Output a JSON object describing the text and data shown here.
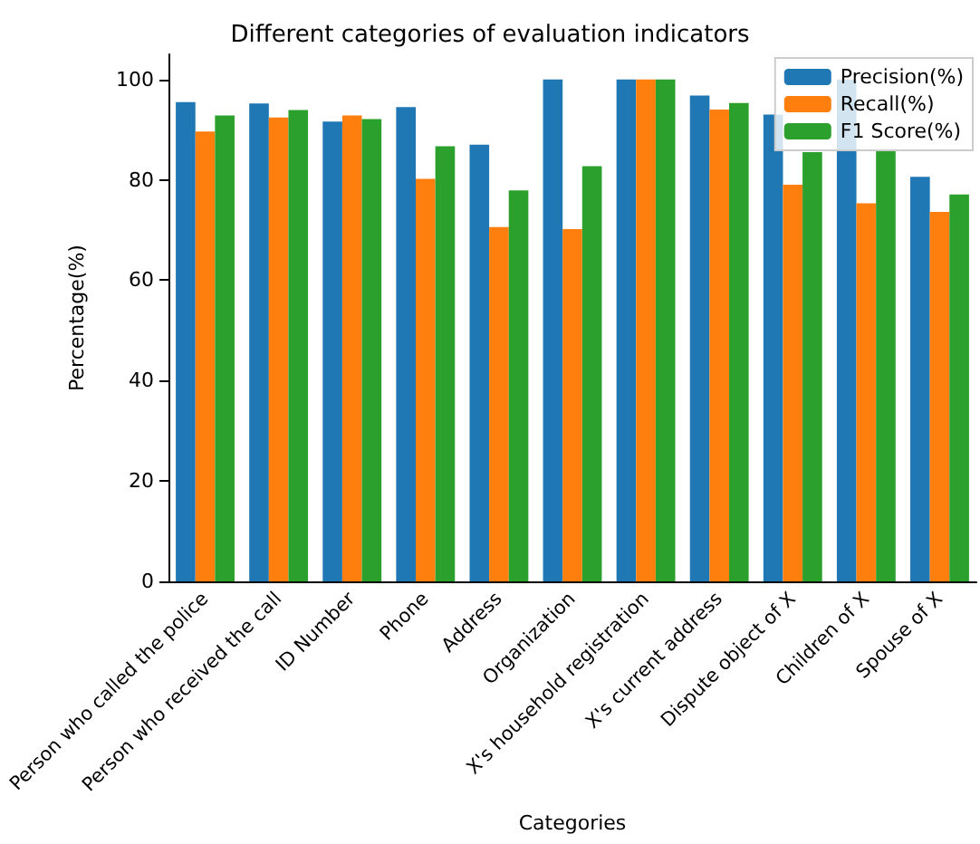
{
  "chart_data": {
    "type": "bar",
    "title": "Different categories of evaluation indicators",
    "xlabel": "Categories",
    "ylabel": "Percentage(%)",
    "categories": [
      "Person who called the police",
      "Person who received the call",
      "ID Number",
      "Phone",
      "Address",
      "Organization",
      "X's household registration",
      "X's current address",
      "Dispute object of X",
      "Children of X",
      "Spouse of X"
    ],
    "series": [
      {
        "name": "Precision(%)",
        "color": "#1f77b4",
        "values": [
          95.5,
          95.2,
          91.6,
          94.5,
          87.0,
          100,
          100,
          96.8,
          93.0,
          100,
          80.6
        ]
      },
      {
        "name": "Recall(%)",
        "color": "#ff7f0e",
        "values": [
          89.6,
          92.4,
          92.8,
          80.2,
          70.6,
          70.2,
          100,
          94.0,
          79.0,
          75.3,
          73.6
        ]
      },
      {
        "name": "F1 Score(%)",
        "color": "#2ca02c",
        "values": [
          92.8,
          93.9,
          92.1,
          86.7,
          77.9,
          82.7,
          100,
          95.3,
          85.5,
          85.8,
          77.1
        ]
      }
    ],
    "ylim": [
      0,
      105
    ],
    "yticks": [
      0,
      20,
      40,
      60,
      80,
      100
    ],
    "grid": false,
    "legend": "top right"
  }
}
